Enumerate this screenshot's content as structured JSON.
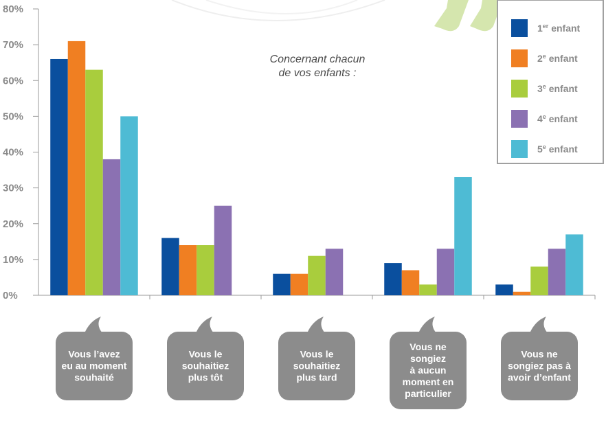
{
  "chart_data": {
    "type": "bar",
    "annotation": [
      "Concernant chacun",
      "de vos enfants :"
    ],
    "ylim": [
      0,
      80
    ],
    "y_ticks": [
      {
        "value": 0,
        "label": "0%"
      },
      {
        "value": 10,
        "label": "10%"
      },
      {
        "value": 20,
        "label": "20%"
      },
      {
        "value": 30,
        "label": "30%"
      },
      {
        "value": 40,
        "label": "40%"
      },
      {
        "value": 50,
        "label": "50%"
      },
      {
        "value": 60,
        "label": "60%"
      },
      {
        "value": 70,
        "label": "70%"
      },
      {
        "value": 80,
        "label": "80%"
      }
    ],
    "categories": [
      "Vous l'avez eu au moment souhaité",
      "Vous le souhaitiez plus tôt",
      "Vous le souhaitiez plus tard",
      "Vous ne songiez à aucun moment en particulier",
      "Vous ne songiez pas à avoir d'enfant"
    ],
    "category_lines": [
      [
        "Vous l’avez",
        "eu au moment",
        "souhaité"
      ],
      [
        "Vous le",
        "souhaitiez",
        "plus tôt"
      ],
      [
        "Vous le",
        "souhaitiez",
        "plus tard"
      ],
      [
        "Vous ne",
        "songiez",
        "à aucun",
        "moment en",
        "particulier"
      ],
      [
        "Vous ne",
        "songiez pas à",
        "avoir d’enfant"
      ]
    ],
    "series": [
      {
        "name": "1er enfant",
        "label_base": "1",
        "label_sup": "er",
        "label_rest": " enfant",
        "color": "#0a4f9e",
        "values": [
          66,
          16,
          6,
          9,
          3
        ]
      },
      {
        "name": "2e enfant",
        "label_base": "2",
        "label_sup": "e",
        "label_rest": " enfant",
        "color": "#f07f22",
        "values": [
          71,
          14,
          6,
          7,
          1
        ]
      },
      {
        "name": "3e enfant",
        "label_base": "3",
        "label_sup": "e",
        "label_rest": " enfant",
        "color": "#a9cd3d",
        "values": [
          63,
          14,
          11,
          3,
          8
        ]
      },
      {
        "name": "4e enfant",
        "label_base": "4",
        "label_sup": "e",
        "label_rest": " enfant",
        "color": "#8b71b2",
        "values": [
          38,
          25,
          13,
          13,
          13
        ]
      },
      {
        "name": "5e enfant",
        "label_base": "5",
        "label_sup": "e",
        "label_rest": " enfant",
        "color": "#4ebbd4",
        "values": [
          50,
          null,
          null,
          33,
          17
        ]
      }
    ],
    "legend_position": "top-right",
    "grid": false
  },
  "colors": {
    "axis": "#9a9a9a",
    "tick_text": "#8a8a8a",
    "bubble": "#8c8c8c",
    "quote_mark": "#d5e6ae",
    "legend_border": "#a0a0a0"
  }
}
